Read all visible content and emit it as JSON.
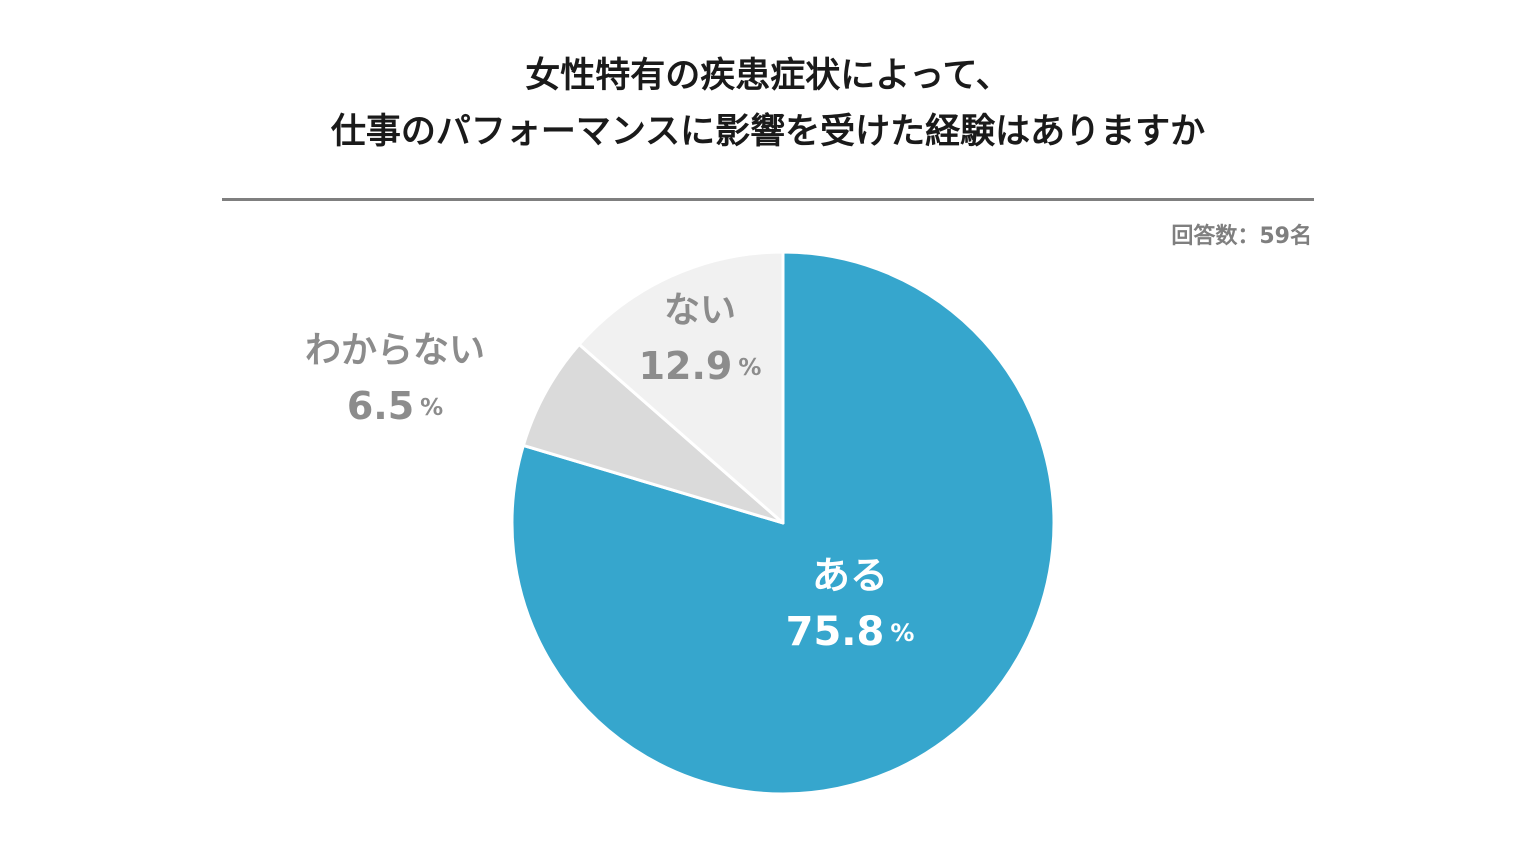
{
  "header": {
    "title_line1": "女性特有の疾患症状によって、",
    "title_line2": "仕事のパフォーマンスに影響を受けた経験はありますか",
    "respondents": "回答数：59名"
  },
  "chart_data": {
    "type": "pie",
    "unit": "%",
    "slices": [
      {
        "label": "ある",
        "value": 75.8,
        "value_text": "75.8",
        "color": "#36a6cd",
        "label_color": "#ffffff"
      },
      {
        "label": "わからない",
        "value": 6.5,
        "value_text": "6.5",
        "color": "#dadada",
        "label_color": "#8c8c8c"
      },
      {
        "label": "ない",
        "value": 12.9,
        "value_text": "12.9",
        "color": "#f1f1f1",
        "label_color": "#8c8c8c"
      }
    ],
    "start_angle": "12 o'clock",
    "direction": "clockwise"
  }
}
